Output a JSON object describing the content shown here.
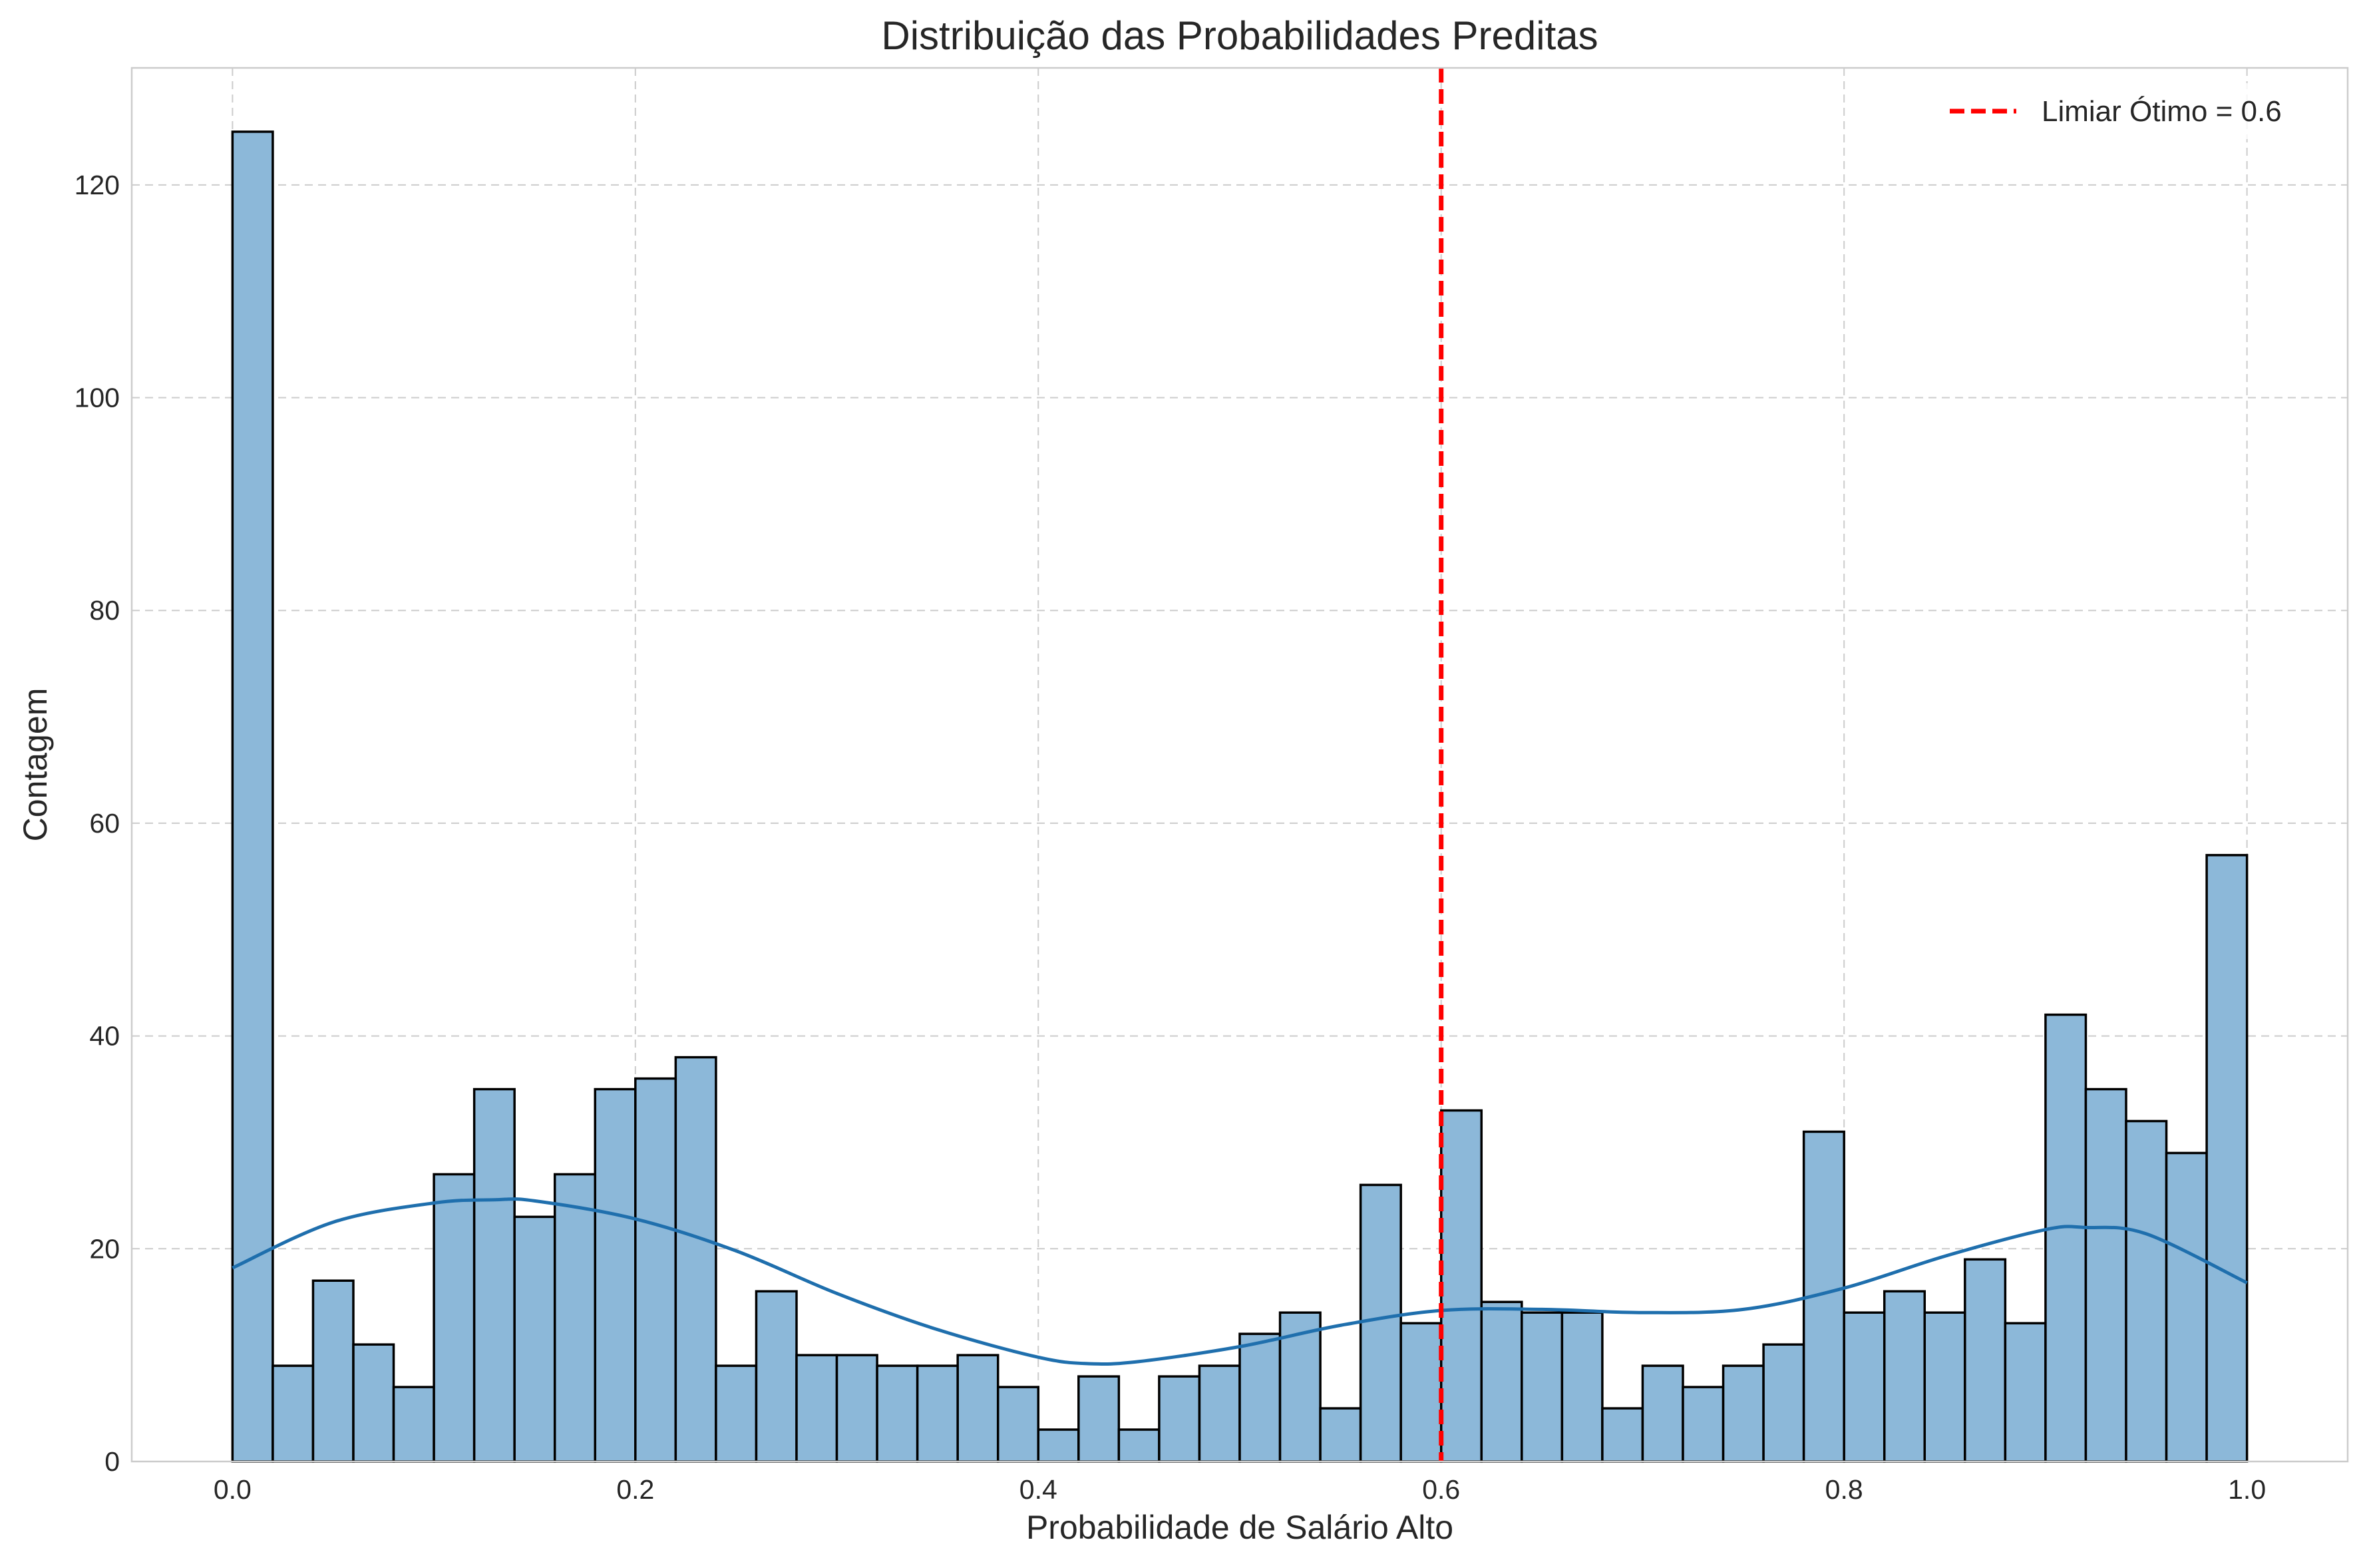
{
  "chart_data": {
    "type": "bar",
    "title": "Distribuição das Probabilidades Preditas",
    "xlabel": "Probabilidade de Salário Alto",
    "ylabel": "Contagem",
    "xlim": [
      -0.05,
      1.05
    ],
    "ylim": [
      0,
      131
    ],
    "xticks": [
      0.0,
      0.2,
      0.4,
      0.6,
      0.8,
      1.0
    ],
    "xtick_labels": [
      "0.0",
      "0.2",
      "0.4",
      "0.6",
      "0.8",
      "1.0"
    ],
    "yticks": [
      0,
      20,
      40,
      60,
      80,
      100,
      120
    ],
    "ytick_labels": [
      "0",
      "20",
      "40",
      "60",
      "80",
      "100",
      "120"
    ],
    "grid": true,
    "bin_edges_range": [
      0.0,
      1.0
    ],
    "bin_count": 50,
    "values": [
      125,
      9,
      17,
      11,
      7,
      27,
      35,
      23,
      27,
      35,
      36,
      38,
      9,
      16,
      10,
      10,
      9,
      9,
      10,
      7,
      3,
      8,
      3,
      8,
      9,
      12,
      14,
      5,
      26,
      13,
      33,
      15,
      14,
      14,
      5,
      9,
      7,
      9,
      11,
      31,
      14,
      16,
      14,
      19,
      13,
      42,
      35,
      32,
      29,
      57
    ],
    "bar_color": "#8cb8d9",
    "bar_edge_color": "#000000",
    "kde": {
      "color": "#1f6fad",
      "x": [
        0.0,
        0.05,
        0.1,
        0.13,
        0.15,
        0.2,
        0.25,
        0.3,
        0.35,
        0.4,
        0.425,
        0.45,
        0.5,
        0.55,
        0.6,
        0.65,
        0.7,
        0.75,
        0.8,
        0.85,
        0.9,
        0.92,
        0.95,
        1.0
      ],
      "y": [
        18.2,
        22.5,
        24.3,
        24.6,
        24.5,
        22.8,
        19.8,
        15.8,
        12.4,
        9.8,
        9.2,
        9.4,
        10.8,
        12.8,
        14.2,
        14.3,
        14.0,
        14.3,
        16.3,
        19.3,
        21.8,
        22.0,
        21.4,
        16.8
      ]
    },
    "threshold": {
      "x": 0.6,
      "color": "#ff0000",
      "label": "Limiar Ótimo = 0.6"
    },
    "legend_position": "top-right"
  }
}
